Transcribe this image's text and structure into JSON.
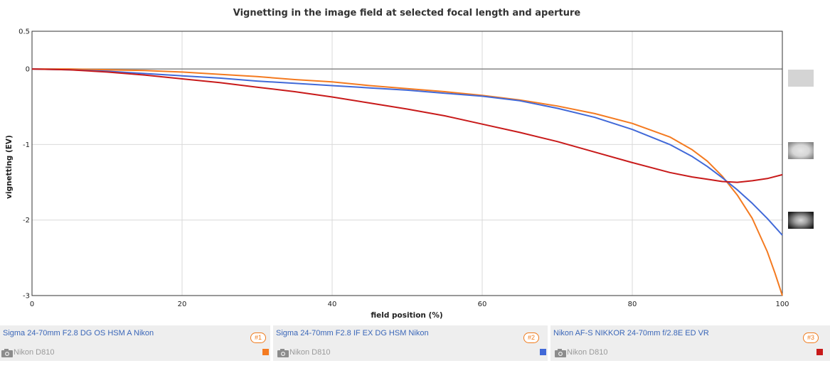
{
  "chart_data": {
    "type": "line",
    "title": "Vignetting in the image field at selected focal length and aperture",
    "xlabel": "field position (%)",
    "ylabel": "vignetting (EV)",
    "xlim": [
      0,
      100
    ],
    "ylim": [
      -3,
      0.5
    ],
    "xticks": [
      0,
      20,
      40,
      60,
      80,
      100
    ],
    "yticks": [
      0.5,
      0,
      -1,
      -2,
      -3
    ],
    "grid": true,
    "series": [
      {
        "name": "Sigma 24-70mm F2.8 DG OS HSM A Nikon",
        "color": "#f47a20",
        "x": [
          0,
          5,
          10,
          15,
          20,
          25,
          30,
          35,
          40,
          45,
          50,
          55,
          60,
          65,
          70,
          75,
          80,
          85,
          88,
          90,
          92,
          94,
          96,
          98,
          99,
          100
        ],
        "y": [
          0,
          0,
          -0.01,
          -0.02,
          -0.04,
          -0.07,
          -0.1,
          -0.14,
          -0.17,
          -0.22,
          -0.26,
          -0.3,
          -0.35,
          -0.41,
          -0.49,
          -0.59,
          -0.72,
          -0.9,
          -1.07,
          -1.22,
          -1.42,
          -1.67,
          -1.98,
          -2.42,
          -2.7,
          -3.0
        ]
      },
      {
        "name": "Sigma 24-70mm F2.8 IF EX DG HSM Nikon",
        "color": "#4169d8",
        "x": [
          0,
          5,
          10,
          15,
          20,
          25,
          30,
          35,
          40,
          45,
          50,
          55,
          60,
          65,
          70,
          75,
          80,
          85,
          88,
          90,
          92,
          94,
          96,
          98,
          100
        ],
        "y": [
          0,
          -0.01,
          -0.03,
          -0.06,
          -0.09,
          -0.12,
          -0.16,
          -0.19,
          -0.22,
          -0.25,
          -0.28,
          -0.32,
          -0.36,
          -0.42,
          -0.52,
          -0.64,
          -0.8,
          -1.0,
          -1.16,
          -1.29,
          -1.44,
          -1.6,
          -1.78,
          -1.98,
          -2.2
        ]
      },
      {
        "name": "Nikon AF-S NIKKOR 24-70mm f/2.8E ED VR",
        "color": "#c81a1a",
        "x": [
          0,
          5,
          10,
          15,
          20,
          25,
          30,
          35,
          40,
          45,
          50,
          55,
          60,
          65,
          70,
          75,
          80,
          85,
          88,
          90,
          92,
          94,
          96,
          98,
          100
        ],
        "y": [
          0,
          -0.01,
          -0.04,
          -0.08,
          -0.13,
          -0.18,
          -0.24,
          -0.3,
          -0.37,
          -0.45,
          -0.53,
          -0.62,
          -0.73,
          -0.84,
          -0.96,
          -1.1,
          -1.24,
          -1.37,
          -1.43,
          -1.46,
          -1.49,
          -1.5,
          -1.48,
          -1.45,
          -1.4
        ]
      }
    ]
  },
  "lenses": [
    {
      "name": "Sigma 24-70mm F2.8 DG OS HSM A Nikon",
      "badge": "#1",
      "camera": "Nikon D810",
      "color": "#f47a20"
    },
    {
      "name": "Sigma 24-70mm F2.8 IF EX DG HSM Nikon",
      "badge": "#2",
      "camera": "Nikon D810",
      "color": "#4169d8"
    },
    {
      "name": "Nikon AF-S NIKKOR 24-70mm f/2.8E ED VR",
      "badge": "#3",
      "camera": "Nikon D810",
      "color": "#c81a1a"
    }
  ],
  "icons": {
    "thumbnails": [
      "vignette-light-thumbnail-icon",
      "vignette-medium-thumbnail-icon",
      "vignette-strong-thumbnail-icon"
    ],
    "camera": "camera-icon"
  }
}
